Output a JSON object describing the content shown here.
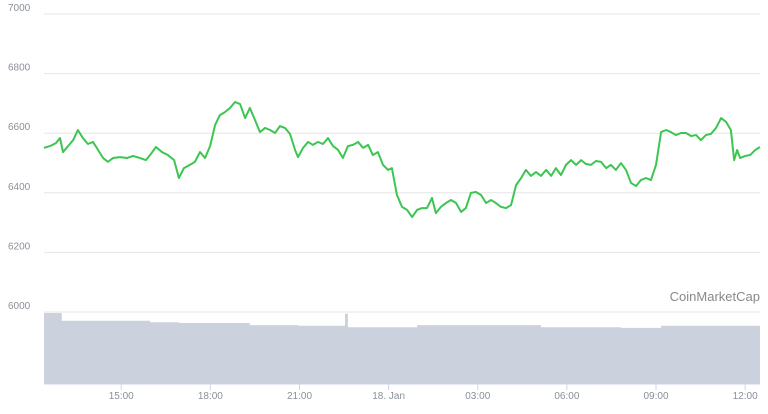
{
  "chart_data": {
    "type": "line",
    "watermark": "CoinMarketCap",
    "xlim": [
      12.4,
      36.5
    ],
    "xticks": [
      {
        "value": 15,
        "label": "15:00"
      },
      {
        "value": 18,
        "label": "18:00"
      },
      {
        "value": 21,
        "label": "21:00"
      },
      {
        "value": 24,
        "label": "18. Jan"
      },
      {
        "value": 27,
        "label": "03:00"
      },
      {
        "value": 30,
        "label": "06:00"
      },
      {
        "value": 33,
        "label": "09:00"
      },
      {
        "value": 36,
        "label": "12:00"
      }
    ],
    "ylim": [
      6000,
      7000
    ],
    "yticks": [
      6000,
      6200,
      6400,
      6600,
      6800,
      7000
    ],
    "y2lim": [
      0,
      100
    ],
    "grid": true,
    "x": [
      12.4,
      12.6,
      12.8,
      12.94,
      13.04,
      13.21,
      13.38,
      13.54,
      13.71,
      13.88,
      14.05,
      14.22,
      14.39,
      14.55,
      14.72,
      14.96,
      15.19,
      15.4,
      15.63,
      15.83,
      15.97,
      16.17,
      16.37,
      16.57,
      16.78,
      16.94,
      17.11,
      17.31,
      17.48,
      17.65,
      17.82,
      17.99,
      18.16,
      18.32,
      18.49,
      18.66,
      18.83,
      19.0,
      19.17,
      19.33,
      19.5,
      19.67,
      19.84,
      20.01,
      20.18,
      20.34,
      20.51,
      20.68,
      20.85,
      20.95,
      21.12,
      21.29,
      21.45,
      21.62,
      21.79,
      21.96,
      22.13,
      22.3,
      22.46,
      22.63,
      22.8,
      22.97,
      23.14,
      23.31,
      23.47,
      23.64,
      23.81,
      23.98,
      24.11,
      24.28,
      24.45,
      24.62,
      24.79,
      24.96,
      25.12,
      25.29,
      25.46,
      25.59,
      25.76,
      25.93,
      26.1,
      26.27,
      26.44,
      26.6,
      26.77,
      26.94,
      27.11,
      27.28,
      27.45,
      27.61,
      27.78,
      27.95,
      28.12,
      28.29,
      28.46,
      28.62,
      28.79,
      28.96,
      29.13,
      29.3,
      29.47,
      29.63,
      29.8,
      29.97,
      30.14,
      30.31,
      30.48,
      30.64,
      30.81,
      30.98,
      31.15,
      31.32,
      31.48,
      31.65,
      31.82,
      31.99,
      32.16,
      32.33,
      32.49,
      32.66,
      32.83,
      33.0,
      33.17,
      33.34,
      33.5,
      33.67,
      33.84,
      34.01,
      34.18,
      34.35,
      34.51,
      34.68,
      34.85,
      35.02,
      35.19,
      35.36,
      35.52,
      35.63,
      35.73,
      35.83,
      36.0,
      36.17,
      36.34,
      36.5
    ],
    "series": [
      {
        "color": "#3cc651",
        "values": [
          6544,
          6550,
          6560,
          6577,
          6530,
          6550,
          6570,
          6604,
          6577,
          6557,
          6564,
          6537,
          6510,
          6497,
          6510,
          6513,
          6510,
          6517,
          6510,
          6503,
          6520,
          6547,
          6530,
          6520,
          6503,
          6443,
          6476,
          6487,
          6497,
          6530,
          6510,
          6550,
          6621,
          6654,
          6664,
          6678,
          6698,
          6691,
          6644,
          6678,
          6638,
          6597,
          6611,
          6604,
          6594,
          6617,
          6611,
          6591,
          6537,
          6513,
          6544,
          6564,
          6554,
          6564,
          6557,
          6577,
          6550,
          6537,
          6510,
          6550,
          6554,
          6564,
          6544,
          6554,
          6520,
          6530,
          6487,
          6470,
          6476,
          6386,
          6346,
          6336,
          6312,
          6336,
          6342,
          6342,
          6376,
          6325,
          6346,
          6359,
          6369,
          6359,
          6329,
          6342,
          6393,
          6396,
          6386,
          6359,
          6369,
          6359,
          6346,
          6342,
          6352,
          6419,
          6443,
          6470,
          6450,
          6463,
          6450,
          6470,
          6450,
          6476,
          6453,
          6487,
          6503,
          6487,
          6503,
          6490,
          6487,
          6500,
          6497,
          6476,
          6487,
          6470,
          6493,
          6470,
          6426,
          6416,
          6436,
          6443,
          6436,
          6487,
          6597,
          6604,
          6597,
          6587,
          6594,
          6594,
          6584,
          6587,
          6570,
          6587,
          6591,
          6611,
          6644,
          6631,
          6604,
          6503,
          6537,
          6510,
          6517,
          6520,
          6537,
          6547
        ]
      },
      {
        "type": "area",
        "axis": "y2",
        "color": "#cbd2de",
        "x": [
          12.4,
          13.0,
          15.97,
          16.94,
          19.33,
          20.95,
          22.46,
          22.53,
          22.63,
          24.96,
          29.13,
          31.82,
          33.17,
          36.5
        ],
        "values": [
          100,
          89,
          87,
          86,
          83,
          82,
          82,
          99,
          80,
          83,
          80,
          79,
          82,
          82
        ]
      }
    ]
  }
}
